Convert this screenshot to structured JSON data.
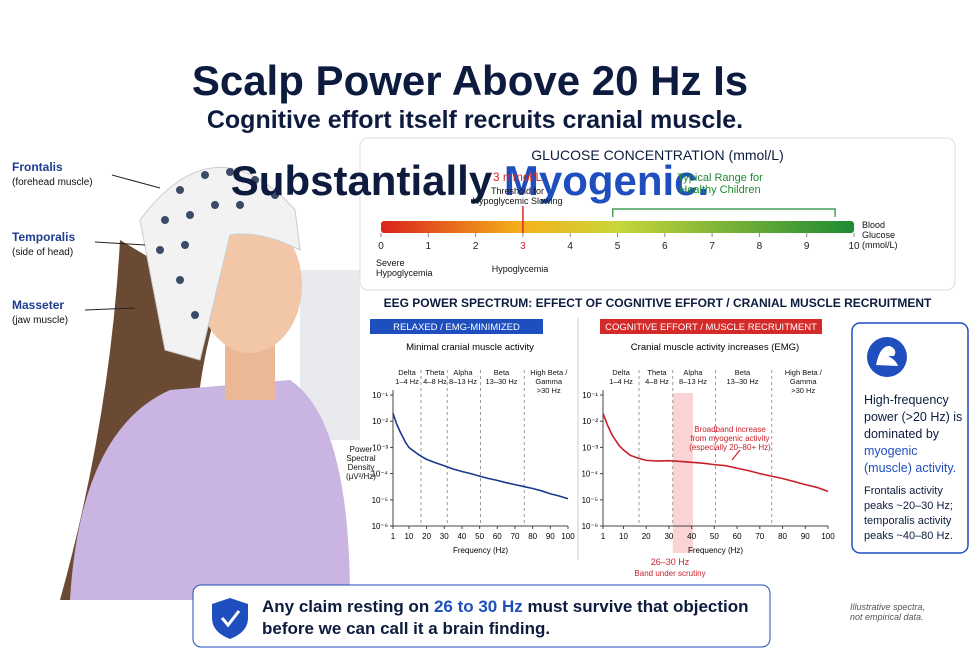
{
  "header": {
    "title_line1": "Scalp Power Above 20 Hz Is",
    "title_line2": "Substantially ",
    "title_highlight": "Myogenic.",
    "subtitle": "Cognitive effort itself recruits cranial muscle."
  },
  "muscles": [
    {
      "name": "Frontalis",
      "desc": "(forehead muscle)"
    },
    {
      "name": "Temporalis",
      "desc": "(side of head)"
    },
    {
      "name": "Masseter",
      "desc": "(jaw muscle)"
    }
  ],
  "glucose": {
    "title": "GLUCOSE CONCENTRATION (mmol/L)",
    "xlim": [
      0,
      10
    ],
    "xticks": [
      0,
      1,
      2,
      3,
      4,
      5,
      6,
      7,
      8,
      9,
      10
    ],
    "threshold": 3,
    "threshold_title": "3 mmol/L",
    "threshold_label": "Threshold for\nHypoglycemic Slowing",
    "range": [
      4.9,
      9.6
    ],
    "range_label": "Typical Range for\nHealthy Children",
    "axis_label": "Blood\nGlucose\n(mmol/L)",
    "zones": [
      "Severe\nHypoglycemia",
      "Hypoglycemia"
    ]
  },
  "chart_data": {
    "type": "line",
    "title": "EEG POWER SPECTRUM: EFFECT OF COGNITIVE EFFORT / CRANIAL MUSCLE RECRUITMENT",
    "x_label": "Frequency (Hz)",
    "y_label": "Power\nSpectral\nDensity\n(μV²/Hz)",
    "log_y": true,
    "xlim": [
      1,
      100
    ],
    "xticks": [
      1,
      10,
      20,
      30,
      40,
      50,
      60,
      70,
      80,
      90,
      100
    ],
    "ylim": [
      1e-06,
      0.1
    ],
    "yticks": [
      {
        "value": 0.1,
        "label": "10⁻¹"
      },
      {
        "value": 0.01,
        "label": "10⁻²"
      },
      {
        "value": 0.001,
        "label": "10⁻³"
      },
      {
        "value": 0.0001,
        "label": "10⁻⁴"
      },
      {
        "value": 1e-05,
        "label": "10⁻⁵"
      },
      {
        "value": 1e-06,
        "label": "10⁻⁶"
      }
    ],
    "bands": [
      "Delta\n1–4 Hz",
      "Theta\n4–8 Hz",
      "Alpha\n8–13 Hz",
      "Beta\n13–30 Hz",
      "High Beta /\nGamma\n>30 Hz"
    ],
    "panels": [
      {
        "badge": "RELAXED / EMG-MINIMIZED",
        "badge_color": "#1f4fbf",
        "subtitle": "Minimal cranial muscle activity",
        "color": "#1a3a8f",
        "x": [
          1,
          3,
          5,
          8,
          10,
          13,
          16,
          20,
          25,
          30,
          35,
          40,
          45,
          50,
          55,
          60,
          65,
          70,
          75,
          80,
          85,
          90,
          95,
          100
        ],
        "values": [
          0.02,
          0.008,
          0.004,
          0.0016,
          0.001,
          0.0007,
          0.0005,
          0.00035,
          0.00026,
          0.0002,
          0.00015,
          0.00012,
          0.0001,
          8e-05,
          6.5e-05,
          5.5e-05,
          4.5e-05,
          3.8e-05,
          3.2e-05,
          2.7e-05,
          2.2e-05,
          1.7e-05,
          1.4e-05,
          1.1e-05
        ]
      },
      {
        "badge": "COGNITIVE EFFORT / MUSCLE RECRUITMENT",
        "badge_color": "#d42a2a",
        "subtitle": "Cranial muscle activity increases (EMG)",
        "color": "#c8202a",
        "x": [
          1,
          3,
          5,
          8,
          10,
          13,
          16,
          20,
          25,
          30,
          35,
          40,
          45,
          50,
          55,
          60,
          65,
          70,
          75,
          80,
          85,
          90,
          95,
          100
        ],
        "values": [
          0.02,
          0.007,
          0.003,
          0.0012,
          0.0008,
          0.0005,
          0.0004,
          0.00032,
          0.0003,
          0.00031,
          0.00029,
          0.00027,
          0.00025,
          0.00022,
          0.0002,
          0.00016,
          0.00013,
          0.0001,
          8e-05,
          6.5e-05,
          5e-05,
          3.8e-05,
          3e-05,
          2.1e-05
        ]
      }
    ],
    "annotation": "Broadband increase\nfrom myogenic activity\n(especially 20–80+ Hz)",
    "highlight_label": "26–30 Hz",
    "highlight_caption": "Band under scrutiny"
  },
  "info": {
    "text": "High-frequency power (>20 Hz) is dominated by ",
    "highlight": "myogenic (muscle) activity.",
    "detail": "Frontalis activity peaks ~20–30 Hz; temporalis activity peaks ~40–80 Hz."
  },
  "claim": {
    "before": "Any claim resting on ",
    "highlight": "26 to 30 Hz",
    "after": " must survive that objection before we can call it a brain finding."
  },
  "note": "Illustrative spectra,\nnot empirical data."
}
